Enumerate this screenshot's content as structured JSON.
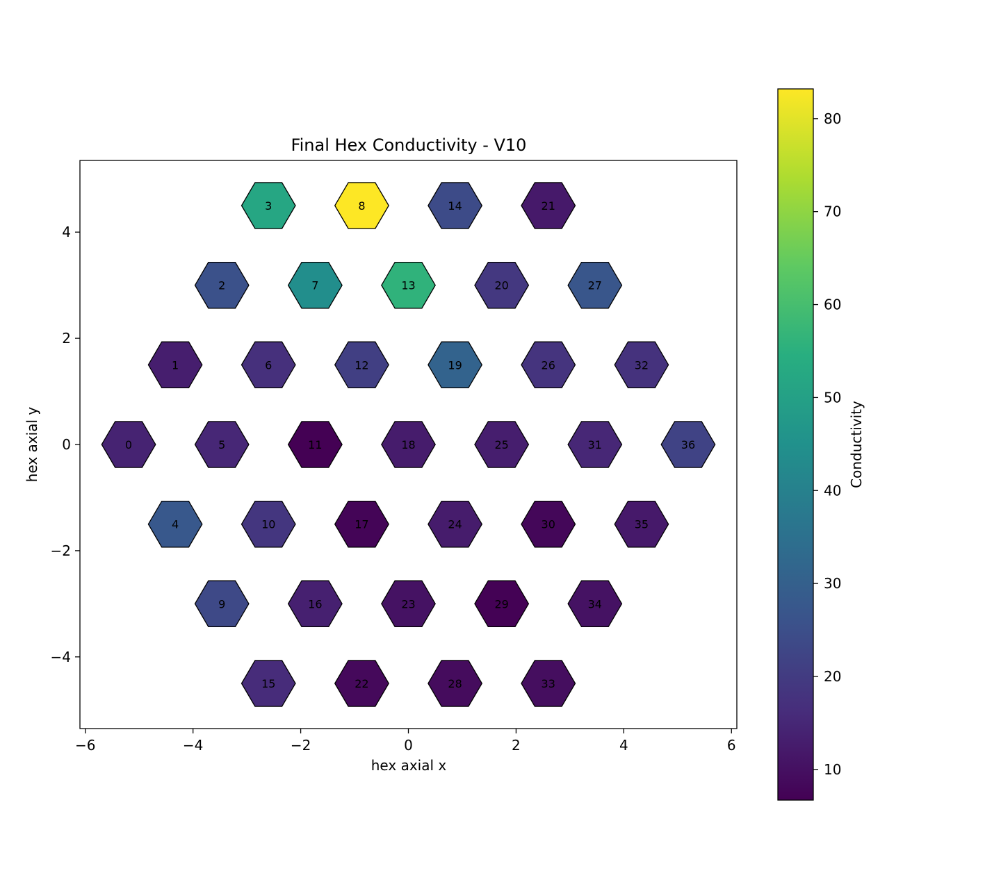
{
  "chart_data": {
    "type": "heatmap",
    "title": "Final Hex Conductivity - V10",
    "xlabel": "hex axial x",
    "ylabel": "hex axial y",
    "xlim": [
      -6.1,
      6.1
    ],
    "ylim": [
      -5.35,
      5.35
    ],
    "xticks": [
      -6,
      -4,
      -2,
      0,
      2,
      4,
      6
    ],
    "yticks": [
      -4,
      -2,
      0,
      2,
      4
    ],
    "colorbar": {
      "label": "Conductivity",
      "range": [
        6.7,
        83.2
      ],
      "ticks": [
        10,
        20,
        30,
        40,
        50,
        60,
        70,
        80
      ],
      "colormap": "viridis"
    },
    "cells": [
      {
        "id": "0",
        "x": -5.196,
        "y": 0.0,
        "value": 14.0
      },
      {
        "id": "1",
        "x": -4.33,
        "y": 1.5,
        "value": 13.0
      },
      {
        "id": "2",
        "x": -3.464,
        "y": 3.0,
        "value": 25.5
      },
      {
        "id": "3",
        "x": -2.598,
        "y": 4.5,
        "value": 52.0
      },
      {
        "id": "4",
        "x": -4.33,
        "y": -1.5,
        "value": 27.5
      },
      {
        "id": "5",
        "x": -3.464,
        "y": 0.0,
        "value": 15.0
      },
      {
        "id": "6",
        "x": -2.598,
        "y": 1.5,
        "value": 17.0
      },
      {
        "id": "7",
        "x": -1.732,
        "y": 3.0,
        "value": 44.0
      },
      {
        "id": "8",
        "x": -0.866,
        "y": 4.5,
        "value": 83.2
      },
      {
        "id": "9",
        "x": -3.464,
        "y": -3.0,
        "value": 23.5
      },
      {
        "id": "10",
        "x": -2.598,
        "y": -1.5,
        "value": 18.5
      },
      {
        "id": "11",
        "x": -1.732,
        "y": 0.0,
        "value": 6.7
      },
      {
        "id": "12",
        "x": -0.866,
        "y": 1.5,
        "value": 21.0
      },
      {
        "id": "13",
        "x": 0.0,
        "y": 3.0,
        "value": 56.0
      },
      {
        "id": "14",
        "x": 0.866,
        "y": 4.5,
        "value": 24.0
      },
      {
        "id": "15",
        "x": -2.598,
        "y": -4.5,
        "value": 16.0
      },
      {
        "id": "16",
        "x": -1.732,
        "y": -3.0,
        "value": 13.5
      },
      {
        "id": "17",
        "x": -0.866,
        "y": -1.5,
        "value": 7.5
      },
      {
        "id": "18",
        "x": 0.0,
        "y": 0.0,
        "value": 12.5
      },
      {
        "id": "19",
        "x": 0.866,
        "y": 1.5,
        "value": 31.0
      },
      {
        "id": "20",
        "x": 1.732,
        "y": 3.0,
        "value": 19.0
      },
      {
        "id": "21",
        "x": 2.598,
        "y": 4.5,
        "value": 12.0
      },
      {
        "id": "22",
        "x": -0.866,
        "y": -4.5,
        "value": 8.5
      },
      {
        "id": "23",
        "x": 0.0,
        "y": -3.0,
        "value": 10.5
      },
      {
        "id": "24",
        "x": 0.866,
        "y": -1.5,
        "value": 12.5
      },
      {
        "id": "25",
        "x": 1.732,
        "y": 0.0,
        "value": 13.0
      },
      {
        "id": "26",
        "x": 2.598,
        "y": 1.5,
        "value": 18.0
      },
      {
        "id": "27",
        "x": 3.464,
        "y": 3.0,
        "value": 27.0
      },
      {
        "id": "28",
        "x": 0.866,
        "y": -4.5,
        "value": 9.0
      },
      {
        "id": "29",
        "x": 1.732,
        "y": -3.0,
        "value": 7.0
      },
      {
        "id": "30",
        "x": 2.598,
        "y": -1.5,
        "value": 8.0
      },
      {
        "id": "31",
        "x": 3.464,
        "y": 0.0,
        "value": 15.0
      },
      {
        "id": "32",
        "x": 4.33,
        "y": 1.5,
        "value": 17.5
      },
      {
        "id": "33",
        "x": 2.598,
        "y": -4.5,
        "value": 9.5
      },
      {
        "id": "34",
        "x": 3.464,
        "y": -3.0,
        "value": 10.5
      },
      {
        "id": "35",
        "x": 4.33,
        "y": -1.5,
        "value": 12.0
      },
      {
        "id": "36",
        "x": 5.196,
        "y": 0.0,
        "value": 22.0
      }
    ]
  }
}
